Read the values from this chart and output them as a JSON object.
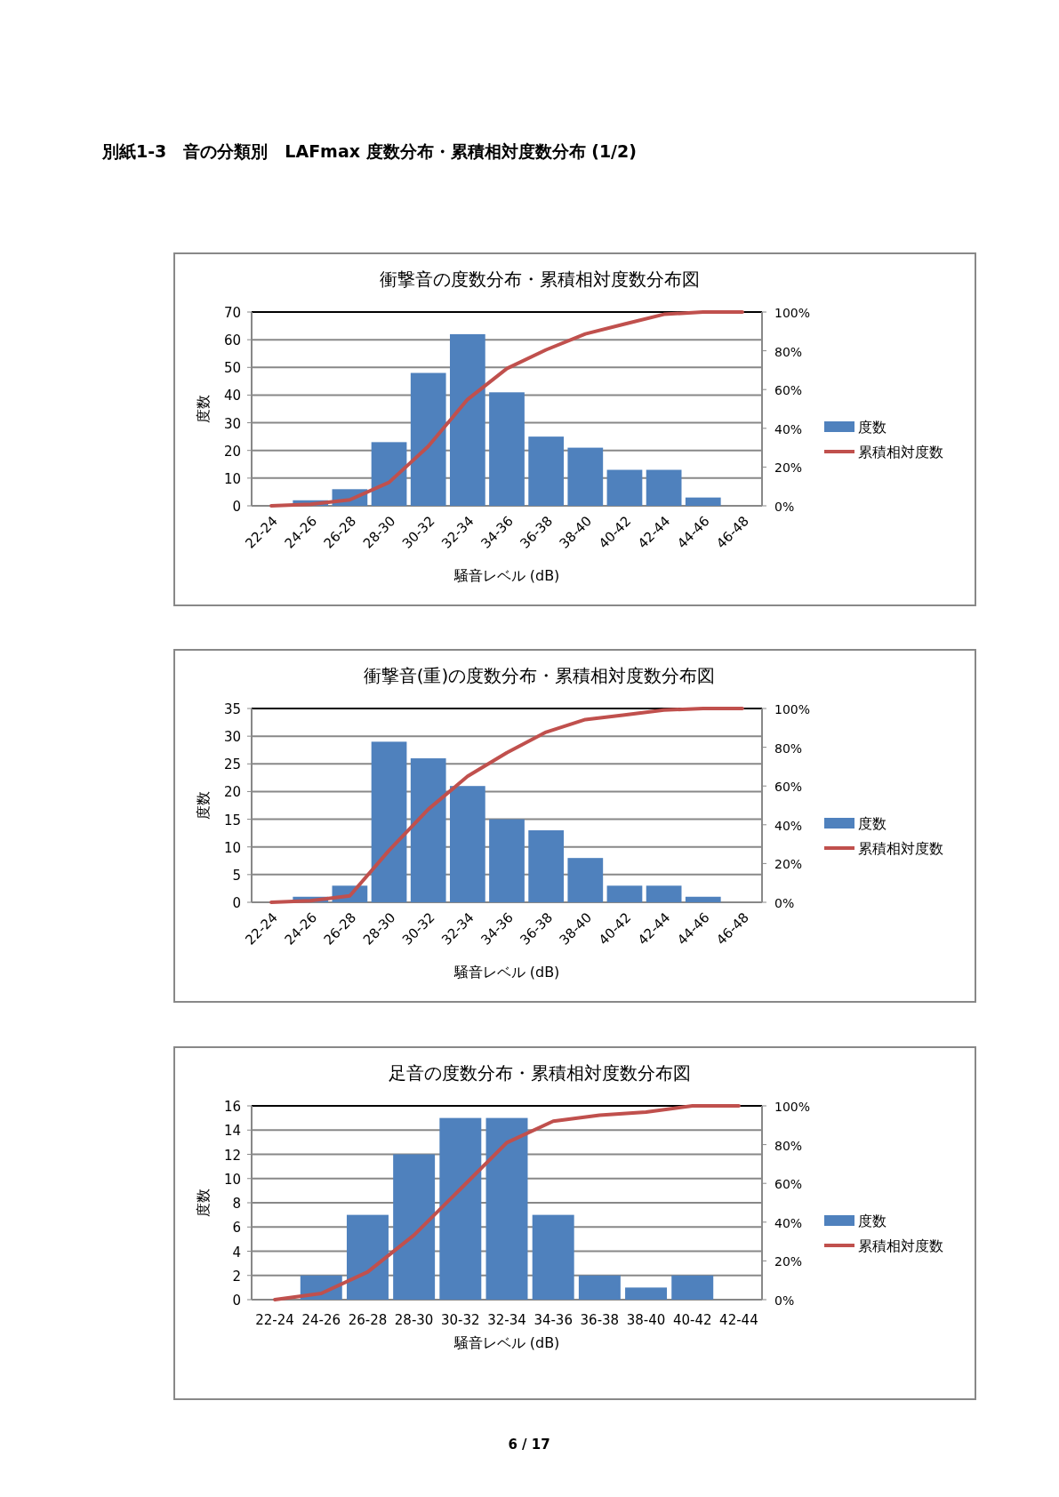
{
  "chart_data": [
    {
      "type": "bar",
      "title": "衝撃音の度数分布・累積相対度数分布図",
      "xlabel": "騒音レベル (dB)",
      "ylabel": "度数",
      "categories": [
        "22-24",
        "24-26",
        "26-28",
        "28-30",
        "30-32",
        "32-34",
        "34-36",
        "36-38",
        "38-40",
        "40-42",
        "42-44",
        "44-46",
        "46-48"
      ],
      "series": [
        {
          "name": "度数",
          "color": "#4f81bd",
          "values": [
            0,
            2,
            6,
            23,
            48,
            62,
            41,
            25,
            21,
            13,
            13,
            3,
            0
          ]
        },
        {
          "name": "累積相対度数",
          "type": "line",
          "axis": "y2",
          "color": "#c0504d",
          "values": [
            0,
            0.8,
            3.1,
            12.1,
            30.7,
            54.9,
            70.8,
            80.5,
            88.7,
            93.8,
            98.8,
            100,
            100
          ]
        }
      ],
      "ylim": [
        0,
        70
      ],
      "yticks": [
        0,
        10,
        20,
        30,
        40,
        50,
        60,
        70
      ],
      "y2lim": [
        0,
        100
      ],
      "y2ticks": [
        {
          "value": 0,
          "label": "0%"
        },
        {
          "value": 20,
          "label": "20%"
        },
        {
          "value": 40,
          "label": "40%"
        },
        {
          "value": 60,
          "label": "60%"
        },
        {
          "value": 80,
          "label": "80%"
        },
        {
          "value": 100,
          "label": "100%"
        }
      ],
      "grid": "y",
      "legend": "right",
      "annotations": [
        "別紙1-3　音の分類別　LAFmax 度数分布・累積相対度数分布 (1/2)"
      ]
    },
    {
      "type": "bar",
      "title": "衝撃音(重)の度数分布・累積相対度数分布図",
      "xlabel": "騒音レベル (dB)",
      "ylabel": "度数",
      "categories": [
        "22-24",
        "24-26",
        "26-28",
        "28-30",
        "30-32",
        "32-34",
        "34-36",
        "36-38",
        "38-40",
        "40-42",
        "42-44",
        "44-46",
        "46-48"
      ],
      "series": [
        {
          "name": "度数",
          "color": "#4f81bd",
          "values": [
            0,
            1,
            3,
            29,
            26,
            21,
            15,
            13,
            8,
            3,
            3,
            1,
            0
          ]
        },
        {
          "name": "累積相対度数",
          "type": "line",
          "axis": "y2",
          "color": "#c0504d",
          "values": [
            0,
            0.8,
            3.3,
            26.8,
            48.0,
            65.0,
            77.2,
            87.8,
            94.3,
            96.7,
            99.2,
            100,
            100
          ]
        }
      ],
      "ylim": [
        0,
        35
      ],
      "yticks": [
        0,
        5,
        10,
        15,
        20,
        25,
        30,
        35
      ],
      "y2lim": [
        0,
        100
      ],
      "y2ticks": [
        {
          "value": 0,
          "label": "0%"
        },
        {
          "value": 20,
          "label": "20%"
        },
        {
          "value": 40,
          "label": "40%"
        },
        {
          "value": 60,
          "label": "60%"
        },
        {
          "value": 80,
          "label": "80%"
        },
        {
          "value": 100,
          "label": "100%"
        }
      ],
      "grid": "y",
      "legend": "right"
    },
    {
      "type": "bar",
      "title": "足音の度数分布・累積相対度数分布図",
      "xlabel": "騒音レベル (dB)",
      "ylabel": "度数",
      "categories": [
        "22-24",
        "24-26",
        "26-28",
        "28-30",
        "30-32",
        "32-34",
        "34-36",
        "36-38",
        "38-40",
        "40-42",
        "42-44"
      ],
      "series": [
        {
          "name": "度数",
          "color": "#4f81bd",
          "values": [
            0,
            2,
            7,
            12,
            15,
            15,
            7,
            2,
            1,
            2,
            0
          ]
        },
        {
          "name": "累積相対度数",
          "type": "line",
          "axis": "y2",
          "color": "#c0504d",
          "values": [
            0,
            3.2,
            14.3,
            33.3,
            57.1,
            81.0,
            92.1,
            95.2,
            96.8,
            100,
            100
          ]
        }
      ],
      "ylim": [
        0,
        16
      ],
      "yticks": [
        0,
        2,
        4,
        6,
        8,
        10,
        12,
        14,
        16
      ],
      "y2lim": [
        0,
        100
      ],
      "y2ticks": [
        {
          "value": 0,
          "label": "0%"
        },
        {
          "value": 20,
          "label": "20%"
        },
        {
          "value": 40,
          "label": "40%"
        },
        {
          "value": 60,
          "label": "60%"
        },
        {
          "value": 80,
          "label": "80%"
        },
        {
          "value": 100,
          "label": "100%"
        }
      ],
      "grid": "y",
      "legend": "right",
      "annotations": [
        "6 / 17"
      ]
    }
  ]
}
